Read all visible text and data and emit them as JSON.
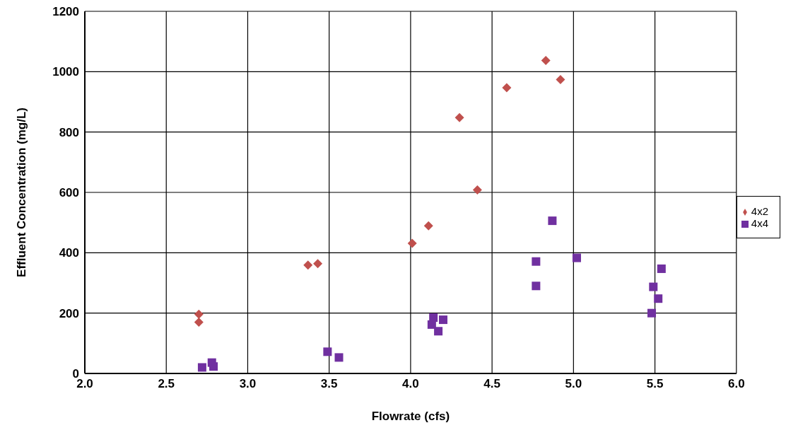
{
  "chart_data": {
    "type": "scatter",
    "xlabel": "Flowrate (cfs)",
    "ylabel": "Effluent Concentration (mg/L)",
    "xlim": [
      2,
      6
    ],
    "xticks": [
      {
        "value": 2,
        "label": "2.0"
      },
      {
        "value": 2.5,
        "label": "2.5"
      },
      {
        "value": 3,
        "label": "3.0"
      },
      {
        "value": 3.5,
        "label": "3.5"
      },
      {
        "value": 4,
        "label": "4.0"
      },
      {
        "value": 4.5,
        "label": "4.5"
      },
      {
        "value": 5,
        "label": "5.0"
      },
      {
        "value": 5.5,
        "label": "5.5"
      },
      {
        "value": 6,
        "label": "6.0"
      }
    ],
    "ylim": [
      0,
      1200
    ],
    "yticks": [
      0,
      200,
      400,
      600,
      800,
      1000,
      1200
    ],
    "grid": true,
    "legend": "right",
    "series": [
      {
        "name": "4x2",
        "color": "#c0504d",
        "marker": "diamond",
        "x": [
          2.7,
          2.7,
          3.37,
          3.43,
          4.01,
          4.11,
          4.41,
          4.3,
          4.59,
          4.83,
          4.92
        ],
        "values": [
          196,
          170,
          359,
          364,
          431,
          489,
          608,
          848,
          947,
          1037,
          974
        ]
      },
      {
        "name": "4x4",
        "color": "#7030a0",
        "marker": "square",
        "x": [
          2.72,
          2.78,
          2.79,
          3.49,
          3.56,
          4.14,
          4.13,
          4.2,
          4.17,
          4.87,
          4.77,
          4.77,
          5.02,
          5.54,
          5.49,
          5.52,
          5.48
        ],
        "values": [
          20,
          36,
          23,
          72,
          53,
          185,
          162,
          178,
          140,
          506,
          371,
          290,
          383,
          347,
          287,
          248,
          200
        ]
      }
    ]
  }
}
